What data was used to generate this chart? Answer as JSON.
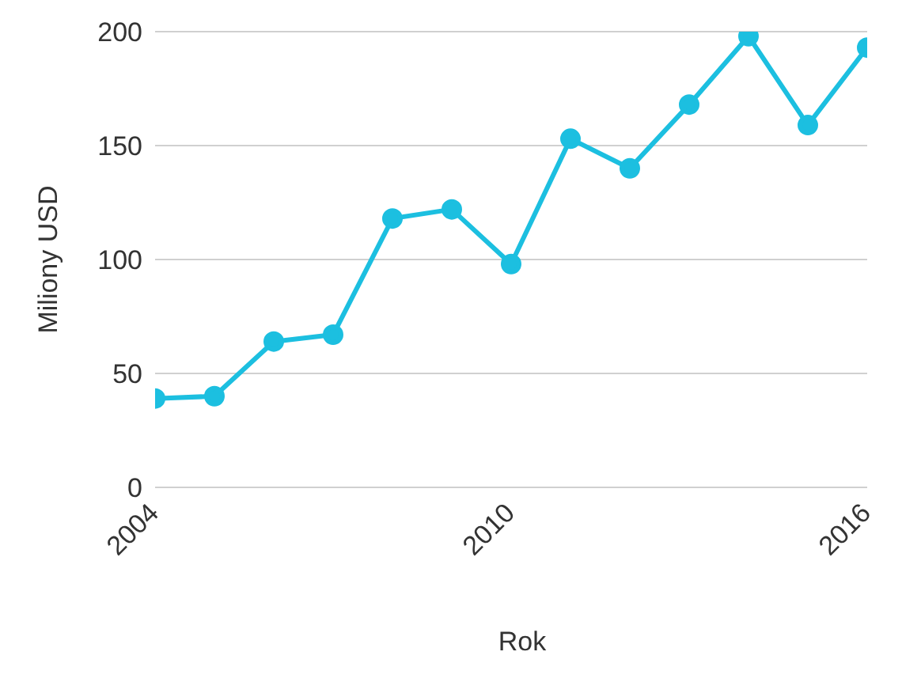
{
  "chart_data": {
    "type": "line",
    "xlabel": "Rok",
    "ylabel": "Miliony USD",
    "x": [
      2004,
      2005,
      2006,
      2007,
      2008,
      2009,
      2010,
      2011,
      2012,
      2013,
      2014,
      2015,
      2016
    ],
    "series": [
      {
        "color": "#1cbfe0",
        "values": [
          39,
          40,
          64,
          67,
          118,
          122,
          98,
          153,
          140,
          168,
          198,
          159,
          193
        ]
      }
    ],
    "xlim": [
      2004,
      2016
    ],
    "xticks": [
      2004,
      2010,
      2016
    ],
    "ylim": [
      0,
      200
    ],
    "yticks": [
      0,
      50,
      100,
      150,
      200
    ],
    "grid": "y",
    "marker": "circle",
    "line_style": "solid"
  }
}
